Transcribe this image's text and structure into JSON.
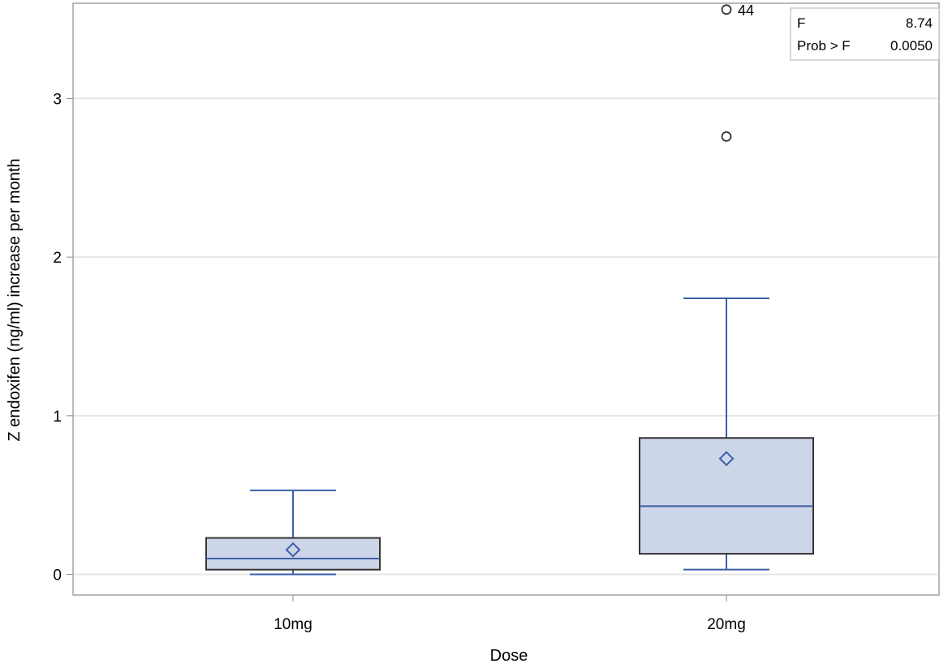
{
  "chart_data": {
    "type": "box",
    "xlabel": "Dose",
    "ylabel": "Z endoxifen (ng/ml) increase per month",
    "categories": [
      "10mg",
      "20mg"
    ],
    "ylim": [
      -0.13,
      3.6
    ],
    "yticks": [
      0,
      1,
      2,
      3
    ],
    "grid": true,
    "boxes": [
      {
        "category": "10mg",
        "whisker_low": 0.0,
        "q1": 0.03,
        "median": 0.1,
        "q3": 0.23,
        "whisker_high": 0.53,
        "mean": 0.155,
        "outliers": []
      },
      {
        "category": "20mg",
        "whisker_low": 0.03,
        "q1": 0.13,
        "median": 0.43,
        "q3": 0.86,
        "whisker_high": 1.74,
        "mean": 0.73,
        "outliers": [
          {
            "y": 2.76,
            "label": ""
          },
          {
            "y": 3.56,
            "label": "44"
          }
        ]
      }
    ],
    "stats_table": [
      {
        "label": "F",
        "value": "8.74"
      },
      {
        "label": "Prob > F",
        "value": "0.0050"
      }
    ],
    "colors": {
      "box_fill": "#cdd6e8",
      "box_edge": "#333333",
      "line": "#3b5ea8",
      "grid": "#e6e6e6",
      "frame": "#8c8c8c",
      "outlier": "#333333"
    }
  }
}
